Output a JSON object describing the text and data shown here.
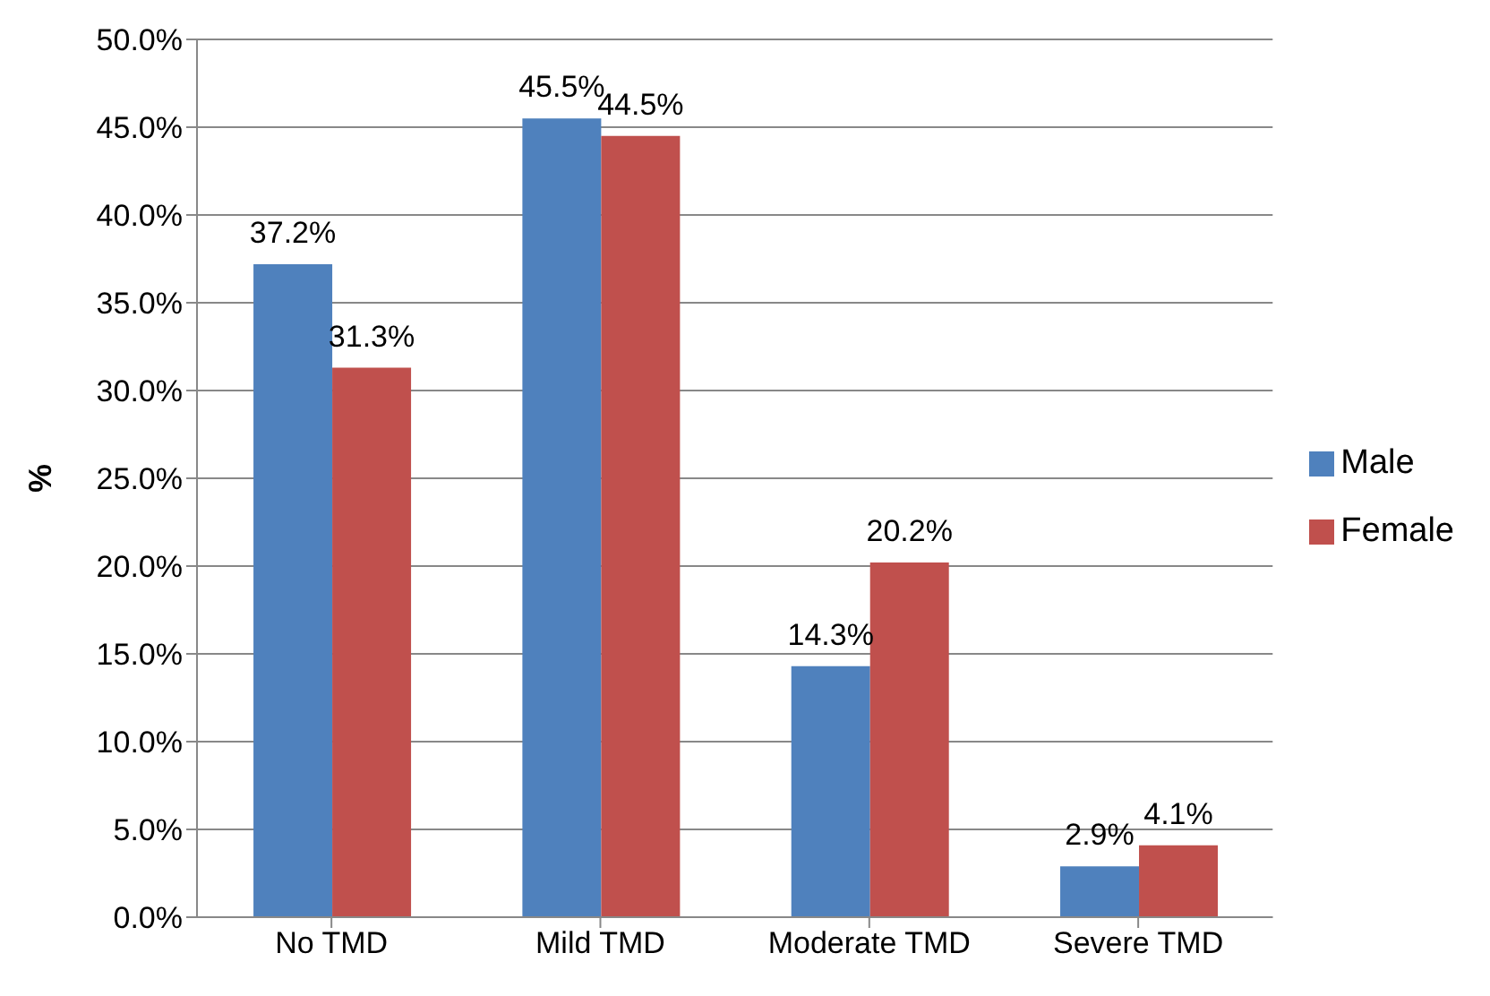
{
  "chart_data": {
    "type": "bar",
    "ylabel": "%",
    "categories": [
      "No TMD",
      "Mild TMD",
      "Moderate TMD",
      "Severe TMD"
    ],
    "series": [
      {
        "name": "Male",
        "color": "#4f81bd",
        "values": [
          37.2,
          45.5,
          14.3,
          2.9
        ],
        "value_labels": [
          "37.2%",
          "45.5%",
          "14.3%",
          "2.9%"
        ]
      },
      {
        "name": "Female",
        "color": "#c0504d",
        "values": [
          31.3,
          44.5,
          20.2,
          4.1
        ],
        "value_labels": [
          "31.3%",
          "44.5%",
          "20.2%",
          "4.1%"
        ]
      }
    ],
    "ylim": [
      0,
      50
    ],
    "yticks": [
      {
        "value": 0,
        "label": "0.0%"
      },
      {
        "value": 5,
        "label": "5.0%"
      },
      {
        "value": 10,
        "label": "10.0%"
      },
      {
        "value": 15,
        "label": "15.0%"
      },
      {
        "value": 20,
        "label": "20.0%"
      },
      {
        "value": 25,
        "label": "25.0%"
      },
      {
        "value": 30,
        "label": "30.0%"
      },
      {
        "value": 35,
        "label": "35.0%"
      },
      {
        "value": 40,
        "label": "40.0%"
      },
      {
        "value": 45,
        "label": "45.0%"
      },
      {
        "value": 50,
        "label": "50.0%"
      }
    ],
    "grid": "y",
    "legend": "right"
  }
}
